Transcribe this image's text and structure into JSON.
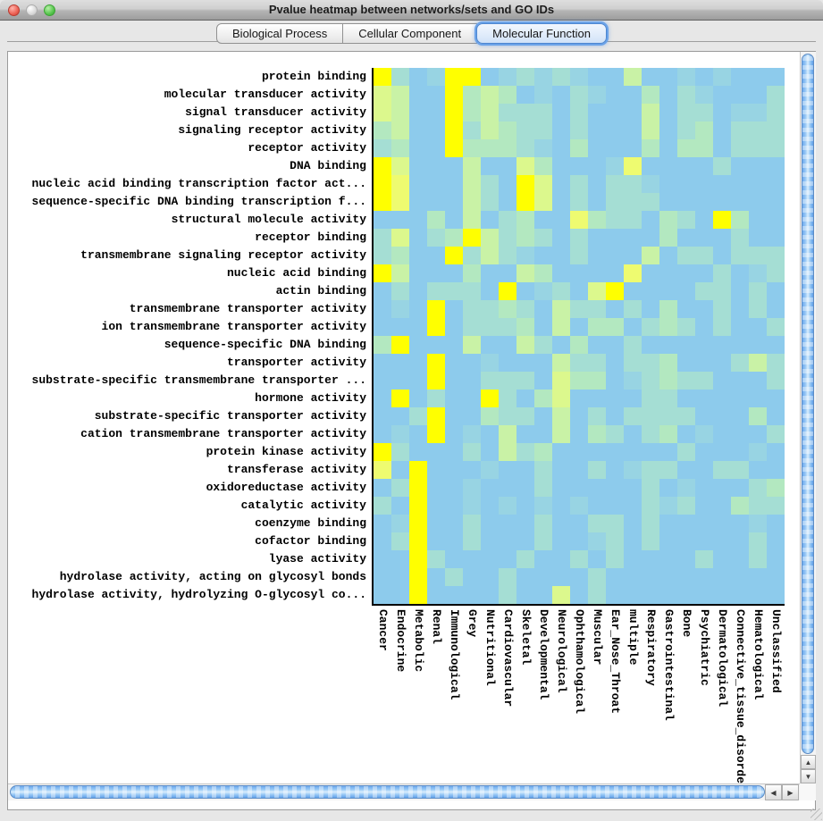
{
  "window": {
    "title": "Pvalue heatmap between networks/sets and GO IDs"
  },
  "tabs": [
    {
      "label": "Biological Process",
      "selected": false
    },
    {
      "label": "Cellular Component",
      "selected": false
    },
    {
      "label": "Molecular Function",
      "selected": true
    }
  ],
  "icons": {
    "up": "▲",
    "down": "▼",
    "left": "◀",
    "right": "▶"
  },
  "colors": {
    "tab_ring": "#5f9ce8",
    "close_button": "#ec6255",
    "minimize_button": "#d9d9d9",
    "zoom_button": "#58c64f",
    "scrollbar_thumb": "#7fb7f2"
  },
  "chart_data": {
    "type": "heatmap",
    "title": "Pvalue heatmap between networks/sets and GO IDs",
    "legend_note": "cell values are discrete significance levels 0-7; 0 = light blue (low), 7 = bright yellow (high)",
    "palette": [
      "#8dcbec",
      "#98d4e3",
      "#a5ded4",
      "#b3e8c0",
      "#c9f2a6",
      "#dcf88d",
      "#eefb70",
      "#ffff00"
    ],
    "rows": [
      "protein binding",
      "molecular transducer activity",
      "signal transducer activity",
      "signaling receptor activity",
      "receptor activity",
      "DNA binding",
      "nucleic acid binding transcription factor act...",
      "sequence-specific DNA binding transcription f...",
      "structural molecule activity",
      "receptor binding",
      "transmembrane signaling receptor activity",
      "nucleic acid binding",
      "actin binding",
      "transmembrane transporter activity",
      "ion transmembrane transporter activity",
      "sequence-specific DNA binding",
      "transporter activity",
      "substrate-specific transmembrane transporter ...",
      "hormone activity",
      "substrate-specific transporter activity",
      "cation transmembrane transporter activity",
      "protein kinase activity",
      "transferase activity",
      "oxidoreductase activity",
      "catalytic activity",
      "coenzyme binding",
      "cofactor binding",
      "lyase activity",
      "hydrolase activity, acting on glycosyl bonds",
      "hydrolase activity, hydrolyzing O-glycosyl co..."
    ],
    "columns": [
      "Cancer",
      "Endocrine",
      "Metabolic",
      "Renal",
      "Immunological",
      "Grey",
      "Nutritional",
      "Cardiovascular",
      "Skeletal",
      "Developmental",
      "Neurological",
      "Ophthamological",
      "Muscular",
      "Ear_Nose_Throat",
      "multiple",
      "Respiratory",
      "Gastrointestinal",
      "Bone",
      "Psychiatric",
      "Dermatological",
      "Connective_tissue_disorder",
      "Hematological",
      "Unclassified"
    ],
    "values": [
      [
        7,
        2,
        0,
        1,
        7,
        7,
        0,
        1,
        2,
        1,
        2,
        1,
        0,
        0,
        4,
        0,
        0,
        1,
        0,
        1,
        0,
        0,
        0
      ],
      [
        5,
        4,
        0,
        0,
        7,
        3,
        4,
        3,
        0,
        1,
        0,
        2,
        1,
        0,
        0,
        3,
        0,
        2,
        1,
        0,
        0,
        0,
        2
      ],
      [
        5,
        4,
        0,
        0,
        7,
        3,
        4,
        2,
        2,
        2,
        0,
        2,
        0,
        0,
        0,
        4,
        0,
        2,
        2,
        0,
        1,
        1,
        2
      ],
      [
        3,
        4,
        0,
        0,
        7,
        2,
        4,
        3,
        2,
        2,
        0,
        2,
        0,
        0,
        0,
        4,
        0,
        2,
        3,
        0,
        2,
        2,
        2
      ],
      [
        2,
        3,
        0,
        0,
        7,
        3,
        3,
        3,
        2,
        1,
        0,
        3,
        0,
        0,
        0,
        3,
        0,
        3,
        3,
        0,
        2,
        2,
        2
      ],
      [
        7,
        5,
        0,
        0,
        0,
        4,
        0,
        0,
        5,
        3,
        0,
        0,
        0,
        1,
        6,
        0,
        0,
        0,
        0,
        2,
        0,
        0,
        0
      ],
      [
        7,
        6,
        0,
        0,
        0,
        4,
        2,
        0,
        7,
        5,
        0,
        2,
        0,
        2,
        2,
        1,
        0,
        0,
        0,
        0,
        0,
        0,
        0
      ],
      [
        7,
        6,
        0,
        0,
        0,
        4,
        2,
        0,
        7,
        5,
        0,
        2,
        0,
        2,
        2,
        2,
        0,
        0,
        0,
        0,
        0,
        0,
        0
      ],
      [
        0,
        0,
        0,
        3,
        0,
        4,
        0,
        2,
        3,
        0,
        0,
        6,
        3,
        2,
        2,
        0,
        3,
        2,
        0,
        7,
        3,
        0,
        0
      ],
      [
        2,
        5,
        0,
        2,
        3,
        7,
        4,
        2,
        3,
        2,
        0,
        2,
        0,
        0,
        0,
        0,
        3,
        0,
        0,
        0,
        2,
        0,
        0
      ],
      [
        2,
        3,
        0,
        0,
        7,
        2,
        4,
        2,
        1,
        0,
        0,
        2,
        0,
        0,
        0,
        4,
        0,
        2,
        2,
        0,
        2,
        2,
        2
      ],
      [
        7,
        4,
        0,
        0,
        0,
        3,
        0,
        0,
        4,
        3,
        0,
        0,
        0,
        0,
        6,
        0,
        0,
        0,
        0,
        2,
        0,
        1,
        2
      ],
      [
        0,
        2,
        0,
        2,
        2,
        2,
        0,
        7,
        0,
        1,
        2,
        0,
        5,
        7,
        0,
        0,
        0,
        0,
        2,
        2,
        0,
        2,
        0
      ],
      [
        0,
        1,
        0,
        7,
        0,
        2,
        2,
        3,
        2,
        0,
        4,
        2,
        2,
        0,
        2,
        0,
        3,
        0,
        0,
        2,
        0,
        2,
        0
      ],
      [
        0,
        0,
        0,
        7,
        0,
        2,
        2,
        2,
        3,
        0,
        4,
        0,
        3,
        3,
        0,
        2,
        3,
        2,
        0,
        2,
        0,
        0,
        2
      ],
      [
        3,
        7,
        0,
        0,
        0,
        4,
        0,
        0,
        4,
        2,
        0,
        3,
        0,
        0,
        2,
        0,
        0,
        0,
        0,
        0,
        0,
        0,
        0
      ],
      [
        0,
        0,
        0,
        7,
        0,
        0,
        1,
        0,
        0,
        0,
        4,
        2,
        2,
        0,
        2,
        2,
        3,
        0,
        0,
        0,
        2,
        4,
        2
      ],
      [
        0,
        0,
        0,
        7,
        0,
        0,
        2,
        2,
        2,
        0,
        5,
        3,
        3,
        0,
        1,
        2,
        3,
        2,
        2,
        0,
        0,
        0,
        2
      ],
      [
        0,
        7,
        0,
        2,
        0,
        0,
        7,
        2,
        0,
        3,
        5,
        0,
        0,
        0,
        0,
        2,
        2,
        0,
        0,
        0,
        0,
        0,
        0
      ],
      [
        0,
        0,
        2,
        7,
        0,
        0,
        3,
        2,
        2,
        0,
        4,
        0,
        2,
        0,
        2,
        2,
        2,
        2,
        0,
        0,
        0,
        3,
        0
      ],
      [
        0,
        1,
        0,
        7,
        0,
        1,
        0,
        4,
        0,
        0,
        4,
        0,
        3,
        2,
        0,
        2,
        3,
        0,
        1,
        0,
        0,
        0,
        2
      ],
      [
        7,
        2,
        0,
        0,
        0,
        2,
        0,
        4,
        2,
        3,
        0,
        0,
        0,
        0,
        0,
        0,
        0,
        2,
        0,
        0,
        0,
        1,
        0
      ],
      [
        6,
        0,
        7,
        0,
        0,
        0,
        1,
        0,
        0,
        2,
        0,
        0,
        2,
        0,
        1,
        2,
        2,
        0,
        0,
        2,
        2,
        0,
        0
      ],
      [
        0,
        2,
        7,
        0,
        0,
        1,
        0,
        0,
        0,
        2,
        0,
        0,
        0,
        0,
        0,
        2,
        0,
        1,
        0,
        0,
        0,
        2,
        3
      ],
      [
        2,
        0,
        7,
        0,
        0,
        1,
        0,
        1,
        0,
        1,
        0,
        1,
        0,
        0,
        0,
        2,
        1,
        2,
        0,
        0,
        3,
        2,
        2
      ],
      [
        0,
        1,
        7,
        0,
        0,
        2,
        0,
        0,
        0,
        2,
        0,
        0,
        2,
        2,
        0,
        2,
        0,
        0,
        0,
        0,
        0,
        1,
        0
      ],
      [
        0,
        2,
        7,
        0,
        0,
        2,
        0,
        0,
        0,
        2,
        0,
        0,
        1,
        2,
        0,
        2,
        0,
        0,
        0,
        0,
        0,
        2,
        0
      ],
      [
        0,
        0,
        7,
        2,
        0,
        0,
        0,
        0,
        2,
        0,
        0,
        2,
        0,
        2,
        0,
        0,
        0,
        0,
        2,
        0,
        0,
        2,
        0
      ],
      [
        0,
        0,
        7,
        0,
        2,
        0,
        0,
        2,
        0,
        0,
        0,
        0,
        2,
        0,
        0,
        0,
        0,
        0,
        0,
        0,
        0,
        0,
        0
      ],
      [
        0,
        0,
        7,
        0,
        0,
        0,
        0,
        2,
        0,
        0,
        5,
        0,
        2,
        0,
        0,
        0,
        0,
        0,
        0,
        0,
        0,
        0,
        0
      ]
    ]
  }
}
